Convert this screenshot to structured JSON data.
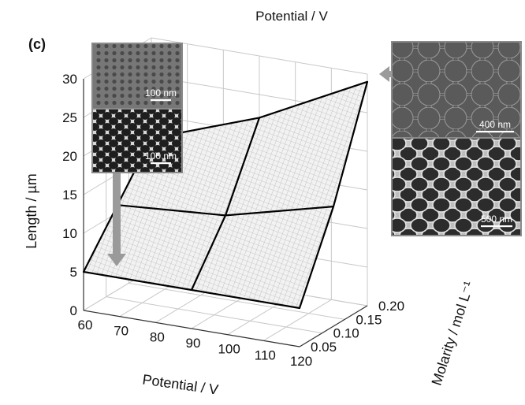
{
  "chart_data": {
    "type": "surface3d",
    "panel_label": "(c)",
    "top_label": "Potential / V",
    "xlabel": "Potential / V",
    "ylabel": "Molarity / mol L⁻¹",
    "zlabel": "Length / µm",
    "x_ticks": [
      60,
      70,
      80,
      90,
      100,
      110,
      120
    ],
    "y_ticks": [
      0.05,
      0.1,
      0.15,
      0.2
    ],
    "z_ticks": [
      0,
      5,
      10,
      15,
      20,
      25,
      30
    ],
    "x_tick_labels": [
      "60",
      "70",
      "80",
      "90",
      "100",
      "110",
      "120"
    ],
    "y_tick_labels": [
      "0.05",
      "0.10",
      "0.15",
      "0.20"
    ],
    "z_tick_labels": [
      "0",
      "5",
      "10",
      "15",
      "20",
      "25",
      "30"
    ],
    "xlim": [
      60,
      120
    ],
    "ylim": [
      0.05,
      0.2
    ],
    "zlim": [
      0,
      30
    ],
    "surface": {
      "x": [
        60,
        90,
        120
      ],
      "y": [
        0.05,
        0.125,
        0.2
      ],
      "z": [
        [
          5,
          5,
          5
        ],
        [
          11,
          12,
          15.5
        ],
        [
          17,
          22,
          29
        ]
      ]
    },
    "insets": [
      {
        "position": "top-left",
        "scale_bars": [
          "100 nm",
          "100 nm"
        ]
      },
      {
        "position": "top-right",
        "scale_bars": [
          "400 nm",
          "500 nm"
        ]
      }
    ]
  },
  "colors": {
    "surface_fill": "#f2f2f2",
    "surface_mesh": "#9a9a9a",
    "arrow": "#9a9a9a"
  }
}
